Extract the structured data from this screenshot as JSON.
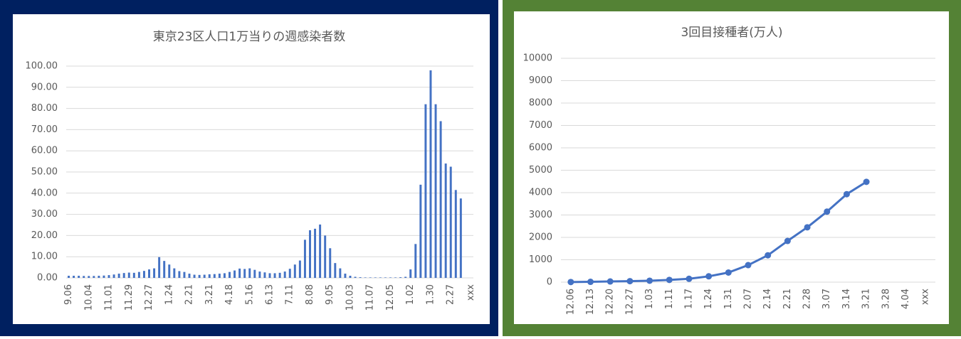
{
  "chart_data": [
    {
      "type": "bar",
      "title": "東京23区人口1万当りの週感染者数",
      "categories": [
        "9.06",
        null,
        null,
        null,
        "10.04",
        null,
        null,
        null,
        "11.01",
        null,
        null,
        null,
        "11.29",
        null,
        null,
        null,
        "12.27",
        null,
        null,
        null,
        "1.24",
        null,
        null,
        null,
        "2.21",
        null,
        null,
        null,
        "3.21",
        null,
        null,
        null,
        "4.18",
        null,
        null,
        null,
        "5.16",
        null,
        null,
        null,
        "6.13",
        null,
        null,
        null,
        "7.11",
        null,
        null,
        null,
        "8.08",
        null,
        null,
        null,
        "9.05",
        null,
        null,
        null,
        "10.03",
        null,
        null,
        null,
        "11.07",
        null,
        null,
        null,
        "12.05",
        null,
        null,
        null,
        "1.02",
        null,
        null,
        null,
        "1.30",
        null,
        null,
        null,
        "2.27",
        null,
        null,
        null,
        "xxx"
      ],
      "values": [
        1.0,
        1.0,
        1.0,
        0.9,
        0.9,
        0.9,
        1.0,
        1.1,
        1.3,
        1.6,
        2.0,
        2.3,
        2.5,
        2.4,
        2.8,
        3.3,
        4.0,
        4.5,
        9.8,
        8.0,
        6.3,
        4.5,
        3.2,
        2.8,
        2.0,
        1.5,
        1.4,
        1.5,
        1.7,
        1.8,
        2.0,
        2.2,
        2.8,
        3.5,
        4.4,
        4.2,
        4.5,
        3.8,
        3.0,
        2.6,
        2.2,
        2.2,
        2.4,
        3.0,
        4.3,
        6.3,
        8.2,
        18.0,
        22.5,
        23.2,
        25.2,
        20.0,
        14.0,
        7.0,
        4.5,
        2.0,
        1.0,
        0.5,
        0.3,
        0.2,
        0.2,
        0.2,
        0.2,
        0.2,
        0.2,
        0.2,
        0.3,
        0.5,
        4.0,
        16.0,
        44.0,
        82.0,
        98.0,
        82.0,
        74.0,
        54.0,
        52.5,
        41.5,
        37.5,
        null,
        null
      ],
      "color": "#4472c4",
      "ylim": [
        0,
        100
      ],
      "yticks": [
        {
          "value": 0,
          "label": "0.00"
        },
        {
          "value": 10,
          "label": "10.00"
        },
        {
          "value": 20,
          "label": "20.00"
        },
        {
          "value": 30,
          "label": "30.00"
        },
        {
          "value": 40,
          "label": "40.00"
        },
        {
          "value": 50,
          "label": "50.00"
        },
        {
          "value": 60,
          "label": "60.00"
        },
        {
          "value": 70,
          "label": "70.00"
        },
        {
          "value": 80,
          "label": "80.00"
        },
        {
          "value": 90,
          "label": "90.00"
        },
        {
          "value": 100,
          "label": "100.00"
        }
      ],
      "grid": true
    },
    {
      "type": "line",
      "title": "3回目接種者(万人)",
      "categories": [
        "12.06",
        "12.13",
        "12.20",
        "12.27",
        "1.03",
        "1.11",
        "1.17",
        "1.24",
        "1.31",
        "2.07",
        "2.14",
        "2.21",
        "2.28",
        "3.07",
        "3.14",
        "3.21",
        "3.28",
        "4.04",
        "xxx"
      ],
      "values": [
        5,
        15,
        30,
        45,
        65,
        100,
        150,
        260,
        430,
        760,
        1200,
        1840,
        2450,
        3150,
        3930,
        4480,
        null,
        null,
        null
      ],
      "color": "#4472c4",
      "ylim": [
        0,
        10000
      ],
      "yticks": [
        0,
        1000,
        2000,
        3000,
        4000,
        5000,
        6000,
        7000,
        8000,
        9000,
        10000
      ],
      "grid": true
    }
  ]
}
